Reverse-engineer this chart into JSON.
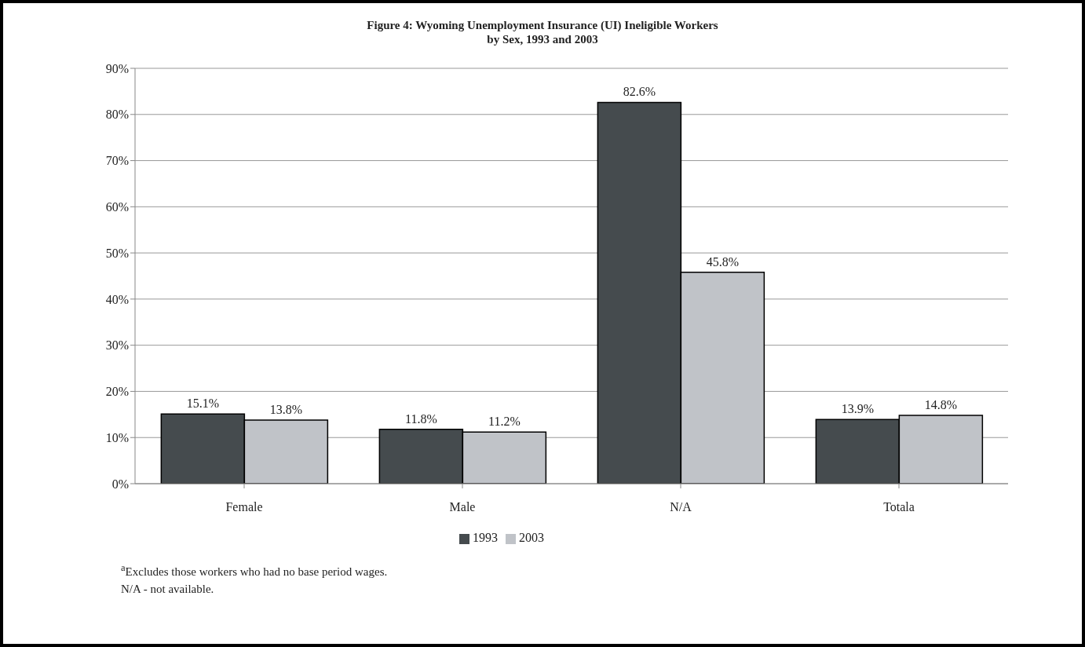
{
  "chart_data": {
    "type": "bar",
    "title": "Figure 4: Wyoming Unemployment Insurance (UI) Ineligible Workers\nby Sex, 1993 and 2003",
    "categories": [
      "Female",
      "Male",
      "N/A",
      "Totala"
    ],
    "series": [
      {
        "name": "1993",
        "color": "#454b4e",
        "values": [
          15.1,
          11.8,
          82.6,
          13.9
        ],
        "value_labels": [
          "15.1%",
          "11.8%",
          "82.6%",
          "13.9%"
        ]
      },
      {
        "name": "2003",
        "color": "#c0c3c8",
        "values": [
          13.8,
          11.2,
          45.8,
          14.8
        ],
        "value_labels": [
          "13.8%",
          "11.2%",
          "45.8%",
          "14.8%"
        ]
      }
    ],
    "ylim": [
      0,
      90
    ],
    "yticks": [
      {
        "value": 0,
        "label": "0%"
      },
      {
        "value": 10,
        "label": "10%"
      },
      {
        "value": 20,
        "label": "20%"
      },
      {
        "value": 30,
        "label": "30%"
      },
      {
        "value": 40,
        "label": "40%"
      },
      {
        "value": 50,
        "label": "50%"
      },
      {
        "value": 60,
        "label": "60%"
      },
      {
        "value": 70,
        "label": "70%"
      },
      {
        "value": 80,
        "label": "80%"
      },
      {
        "value": 90,
        "label": "90%"
      }
    ],
    "grid": "y",
    "legend": "bottom",
    "annotations": [
      "$^{a}$Excludes those workers who had no base period wages.",
      "N/A - not available."
    ]
  }
}
